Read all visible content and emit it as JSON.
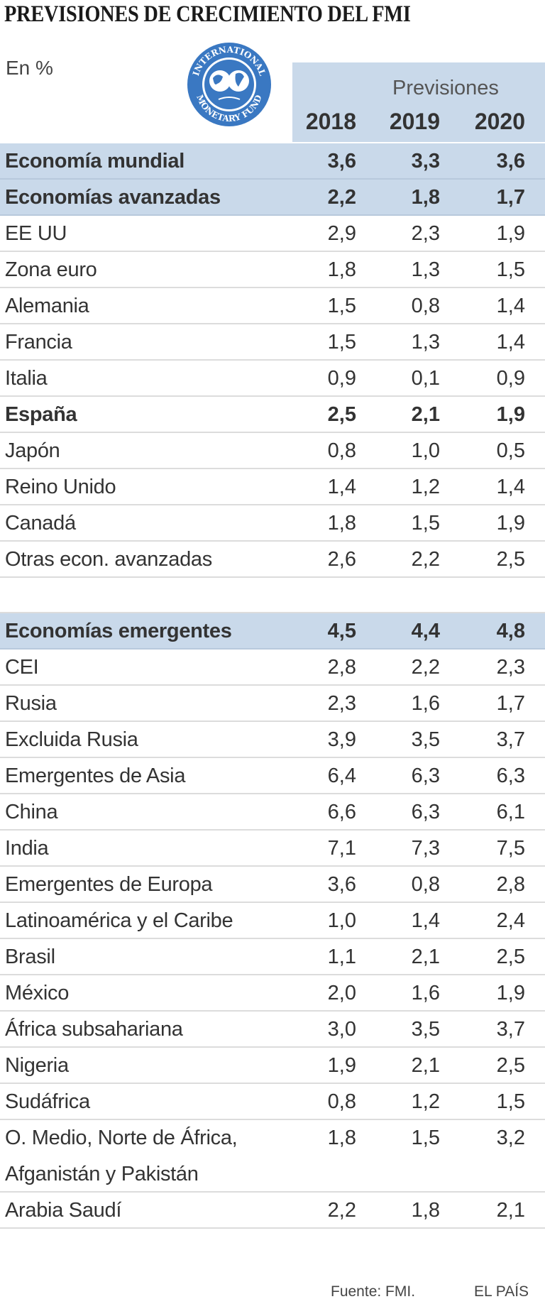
{
  "chart_data": {
    "type": "table",
    "title": "PREVISIONES DE CRECIMIENTO DEL FMI",
    "unit": "En %",
    "header_group": "Previsiones",
    "columns": [
      "2018",
      "2019",
      "2020"
    ],
    "rows": [
      {
        "label": "Economía mundial",
        "values": [
          "3,6",
          "3,3",
          "3,6"
        ],
        "style": "highlight"
      },
      {
        "label": "Economías avanzadas",
        "values": [
          "2,2",
          "1,8",
          "1,7"
        ],
        "style": "highlight"
      },
      {
        "label": "EE UU",
        "values": [
          "2,9",
          "2,3",
          "1,9"
        ],
        "style": "normal"
      },
      {
        "label": "Zona euro",
        "values": [
          "1,8",
          "1,3",
          "1,5"
        ],
        "style": "normal"
      },
      {
        "label": "Alemania",
        "values": [
          "1,5",
          "0,8",
          "1,4"
        ],
        "style": "normal"
      },
      {
        "label": "Francia",
        "values": [
          "1,5",
          "1,3",
          "1,4"
        ],
        "style": "normal"
      },
      {
        "label": "Italia",
        "values": [
          "0,9",
          "0,1",
          "0,9"
        ],
        "style": "normal"
      },
      {
        "label": "España",
        "values": [
          "2,5",
          "2,1",
          "1,9"
        ],
        "style": "bold"
      },
      {
        "label": "Japón",
        "values": [
          "0,8",
          "1,0",
          "0,5"
        ],
        "style": "normal"
      },
      {
        "label": "Reino Unido",
        "values": [
          "1,4",
          "1,2",
          "1,4"
        ],
        "style": "normal"
      },
      {
        "label": "Canadá",
        "values": [
          "1,8",
          "1,5",
          "1,9"
        ],
        "style": "normal"
      },
      {
        "label": "Otras econ. avanzadas",
        "values": [
          "2,6",
          "2,2",
          "2,5"
        ],
        "style": "normal"
      },
      {
        "label": "",
        "values": [
          "",
          "",
          ""
        ],
        "style": "gap"
      },
      {
        "label": "Economías emergentes",
        "values": [
          "4,5",
          "4,4",
          "4,8"
        ],
        "style": "highlight"
      },
      {
        "label": "CEI",
        "values": [
          "2,8",
          "2,2",
          "2,3"
        ],
        "style": "normal"
      },
      {
        "label": "Rusia",
        "values": [
          "2,3",
          "1,6",
          "1,7"
        ],
        "style": "normal"
      },
      {
        "label": "Excluida Rusia",
        "values": [
          "3,9",
          "3,5",
          "3,7"
        ],
        "style": "normal"
      },
      {
        "label": "Emergentes de Asia",
        "values": [
          "6,4",
          "6,3",
          "6,3"
        ],
        "style": "normal"
      },
      {
        "label": "China",
        "values": [
          "6,6",
          "6,3",
          "6,1"
        ],
        "style": "normal"
      },
      {
        "label": "India",
        "values": [
          "7,1",
          "7,3",
          "7,5"
        ],
        "style": "normal"
      },
      {
        "label": "Emergentes de Europa",
        "values": [
          "3,6",
          "0,8",
          "2,8"
        ],
        "style": "normal"
      },
      {
        "label": "Latinoamérica y el Caribe",
        "values": [
          "1,0",
          "1,4",
          "2,4"
        ],
        "style": "normal"
      },
      {
        "label": "Brasil",
        "values": [
          "1,1",
          "2,1",
          "2,5"
        ],
        "style": "normal"
      },
      {
        "label": "México",
        "values": [
          "2,0",
          "1,6",
          "1,9"
        ],
        "style": "normal"
      },
      {
        "label": "África subsahariana",
        "values": [
          "3,0",
          "3,5",
          "3,7"
        ],
        "style": "normal"
      },
      {
        "label": "Nigeria",
        "values": [
          "1,9",
          "2,1",
          "2,5"
        ],
        "style": "normal"
      },
      {
        "label": "Sudáfrica",
        "values": [
          "0,8",
          "1,2",
          "1,5"
        ],
        "style": "normal"
      },
      {
        "label": "O. Medio, Norte de África, Afganistán y Pakistán",
        "values": [
          "1,8",
          "1,5",
          "3,2"
        ],
        "style": "tall"
      },
      {
        "label": "Arabia Saudí",
        "values": [
          "2,2",
          "1,8",
          "2,1"
        ],
        "style": "normal"
      }
    ]
  },
  "logo": {
    "icon": "imf-seal-icon",
    "text_top": "INTERNATIONAL",
    "text_bottom": "MONETARY FUND",
    "color": "#3a78c2"
  },
  "colors": {
    "highlight": "#c9d9ea",
    "divider": "#dcdcdc",
    "text": "#333333"
  },
  "footer": {
    "source": "Fuente: FMI.",
    "brand": "EL PAÍS"
  }
}
